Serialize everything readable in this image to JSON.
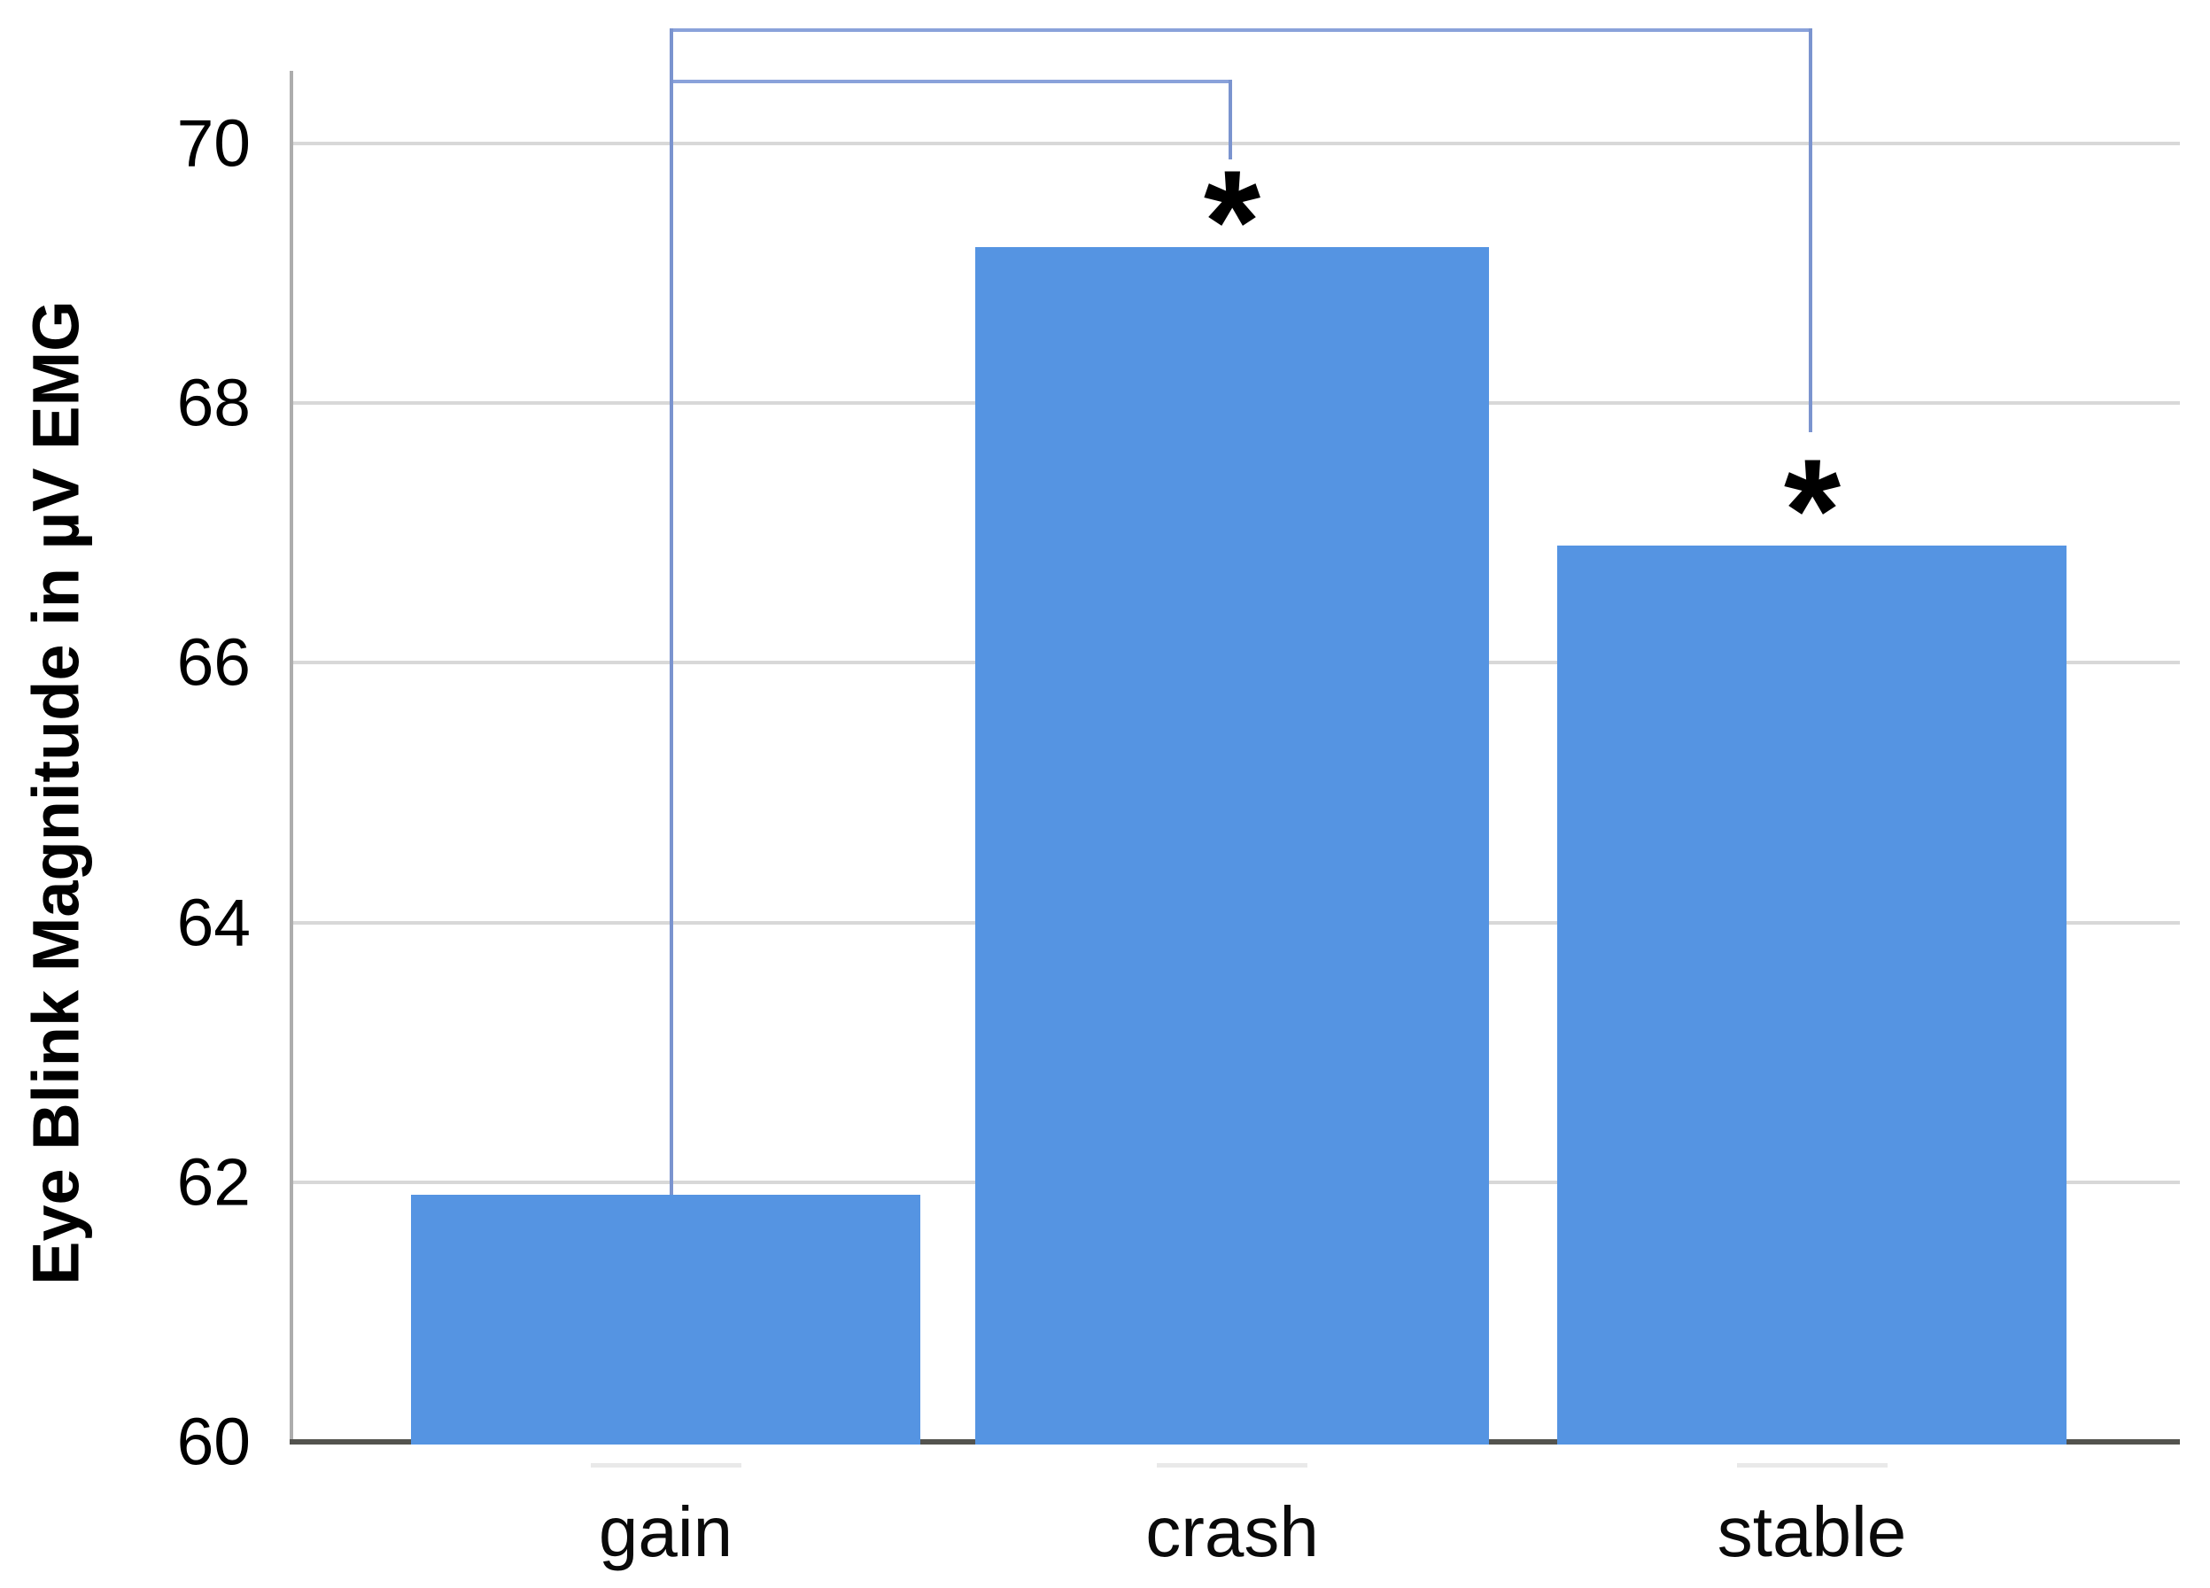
{
  "chart_data": {
    "type": "bar",
    "title": "",
    "categories": [
      "gain",
      "crash",
      "stable"
    ],
    "values": [
      61.9,
      69.2,
      66.9
    ],
    "ylabel": "Eye Blink Magnitude in µV EMG",
    "xlabel": "",
    "ylim": [
      60,
      70
    ],
    "yticks": [
      60,
      62,
      64,
      66,
      68,
      70
    ],
    "grid": true,
    "legend_position": "none",
    "bar_color": "#5594e2",
    "grid_color": "#d8d8d8",
    "bracket_color_horizontal": "#8aa2da",
    "bracket_color_vertical": "#7b94cf",
    "significance": [
      {
        "from": "gain",
        "to": "crash",
        "marker": "*"
      },
      {
        "from": "gain",
        "to": "stable",
        "marker": "*"
      }
    ]
  }
}
